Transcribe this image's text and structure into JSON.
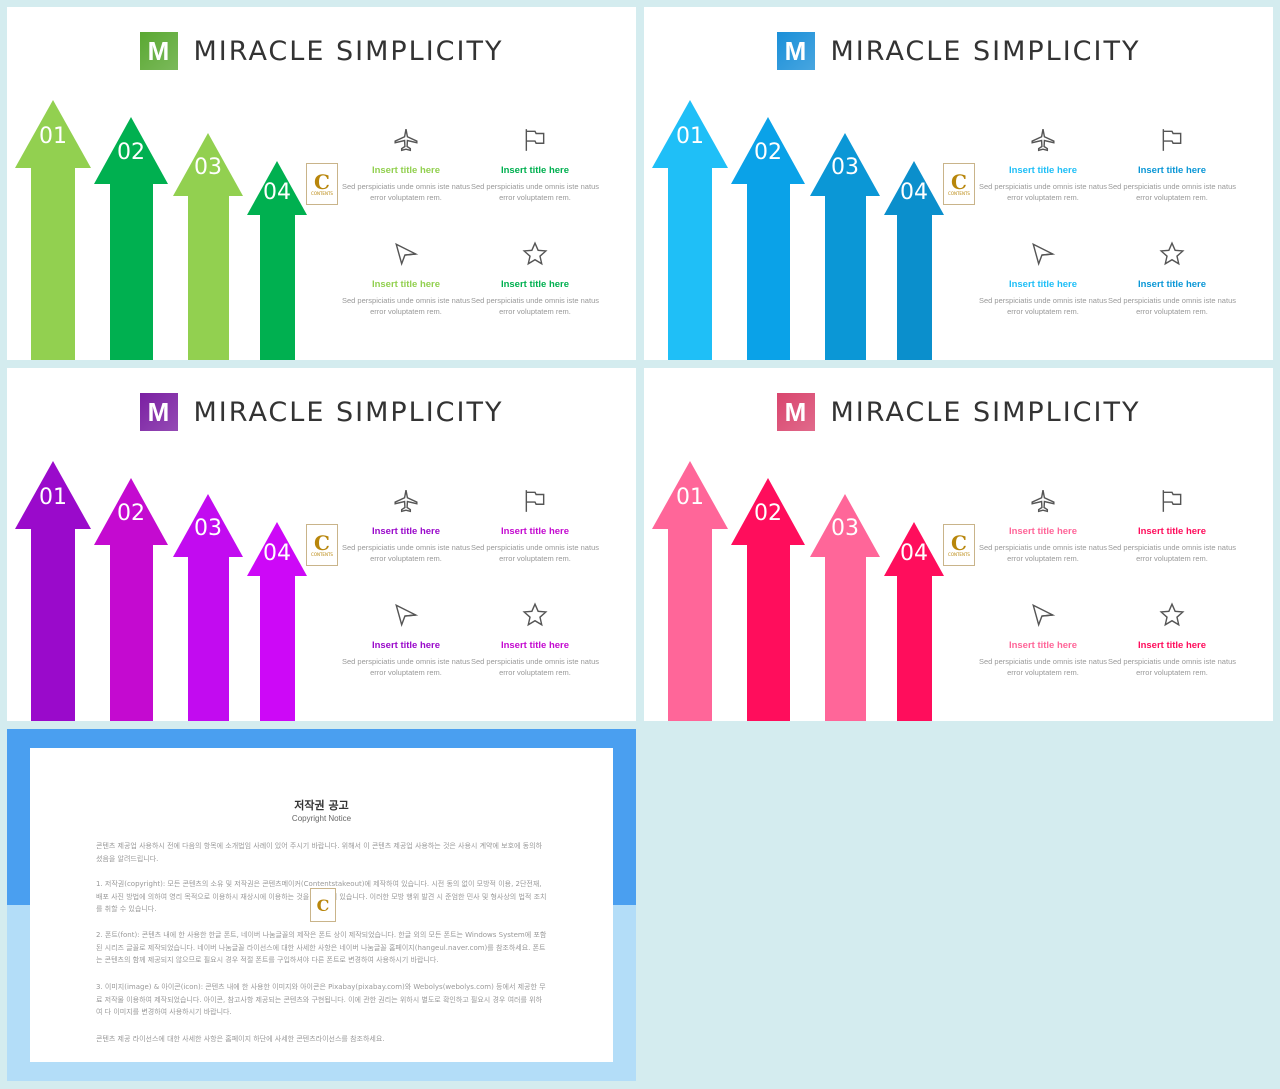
{
  "slide_title": "MIRACLE SIMPLICITY",
  "logo_letter": "M",
  "stamp": {
    "letter": "C",
    "text": "CONTENTS"
  },
  "arrow_numbers": [
    "01",
    "02",
    "03",
    "04"
  ],
  "cells": [
    {
      "icon": "airplane-icon",
      "title": "Insert title here",
      "desc": "Sed perspiciatis unde omnis iste natus error voluptatem rem."
    },
    {
      "icon": "flag-icon",
      "title": "Insert title here",
      "desc": "Sed perspiciatis unde omnis iste natus error voluptatem rem."
    },
    {
      "icon": "paper-plane-icon",
      "title": "Insert title here",
      "desc": "Sed perspiciatis unde omnis iste natus error voluptatem rem."
    },
    {
      "icon": "star-icon",
      "title": "Insert title here",
      "desc": "Sed perspiciatis unde omnis iste natus error voluptatem rem."
    }
  ],
  "themes": [
    {
      "name": "green",
      "logo": "#5aa832",
      "arrows": [
        "#92d050",
        "#00b050",
        "#92d050",
        "#00b050"
      ],
      "cell_title_colors": [
        "#92d050",
        "#00b050",
        "#92d050",
        "#00b050"
      ]
    },
    {
      "name": "blue",
      "logo": "#1a8fd8",
      "arrows": [
        "#1fbff7",
        "#0aa2e8",
        "#0b97d6",
        "#0b8fcc"
      ],
      "cell_title_colors": [
        "#1fbff7",
        "#0b97d6",
        "#1fbff7",
        "#0b97d6"
      ]
    },
    {
      "name": "purple",
      "logo": "#7a1fa2",
      "arrows": [
        "#9a0acb",
        "#c40ad0",
        "#c20bf0",
        "#cd08f7"
      ],
      "cell_title_colors": [
        "#9a0acb",
        "#c40ad0",
        "#9a0acb",
        "#c40ad0"
      ]
    },
    {
      "name": "pink",
      "logo": "#d9456e",
      "arrows": [
        "#ff6699",
        "#ff0d5c",
        "#ff6699",
        "#ff0d5c"
      ],
      "cell_title_colors": [
        "#ff6699",
        "#ff0d5c",
        "#ff6699",
        "#ff0d5c"
      ]
    }
  ],
  "notice": {
    "title": "저작권 공고",
    "subtitle": "Copyright Notice",
    "paragraphs": [
      "콘텐츠 제공업 사용하시 전에 다음의 항목에 소개법임 사례이 있어 주시기 바랍니다. 위해서 이 콘텐츠 제공업 사용하는 것은 사용시 계약에 보호에 동의하셨음을 알려드립니다.",
      "1. 저작권(copyright): 모든 콘텐츠의 소유 및 저작권은 콘텐츠메이커(Contentstakeout)에 제작하여 있습니다. 시전 동의 없이 모방적 이용, 2단전재, 배포 사진 방법에 의하여 영리 목적으로 이용하시 재상시에 이용하는 것을 금지되어 있습니다. 이러한 모방 행위 발견 시 준엄한 민사 및 형사상의 법적 조치를 취할 수 있습니다.",
      "2. 폰트(font): 콘텐츠 내에 한 사용한 한글 폰트, 네이버 나눔글꼴의 제작은 폰트 상이 제작되었습니다. 한글 외의 모든 폰트는 Windows System에 포함된 시리즈 글꼴로 제작되었습니다. 네이버 나눔글꼴 라이선스에 대한 사세한 사항은 네이버 나눔글꼴 홈페이지(hangeul.naver.com)를 참조하세요. 폰트는 콘텐츠의 함께 제공되지 않으므로 필요시 경우 적절 폰트를 구입하셔야 다른 폰트로 변경하여 사용하시기 바랍니다.",
      "3. 이미지(image) & 아이콘(icon): 콘텐츠 내에 한 사용한 이미지와 아이콘은 Pixabay(pixabay.com)와 Webolys(webolys.com) 등에서 제공한 무료 저작물 이용하여 제작되었습니다. 아이콘, 참고사항 제공되는 콘텐츠와 구현됩니다. 이에 관한 권리는 위하시 별도로 확인하고 필요시 경우 여러를 위하여 다 이미지를 변경하여 사용하시기 바랍니다.",
      "콘텐츠 제공 라이선스에 대한 사세한 사항은 홈페이지 하단에 사세한 콘텐츠라이선스를 참조하세요."
    ]
  }
}
